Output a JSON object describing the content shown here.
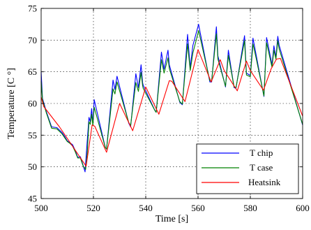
{
  "chart_data": {
    "type": "line",
    "title": "",
    "xlabel": "Time [s]",
    "ylabel": "Temperature [C °]",
    "xlim": [
      500,
      600
    ],
    "ylim": [
      45,
      75
    ],
    "xticks": [
      500,
      520,
      540,
      560,
      580,
      600
    ],
    "yticks": [
      45,
      50,
      55,
      60,
      65,
      70,
      75
    ],
    "grid": true,
    "legend_position": "bottom-right",
    "series": [
      {
        "name": "T chip",
        "color": "#0000ff",
        "x": [
          500,
          500.5,
          502,
          504,
          506,
          508,
          509,
          510,
          511,
          512,
          513,
          514,
          515,
          516,
          516.8,
          517.3,
          518.3,
          518.8,
          519.3,
          519.8,
          520.3,
          524.5,
          525,
          527.5,
          528.2,
          529,
          533.5,
          534.2,
          536.2,
          537.2,
          538.2,
          538.8,
          539,
          543.5,
          544,
          546,
          547,
          548.5,
          549,
          553,
          554,
          556,
          557,
          558,
          559.5,
          560.2,
          564.5,
          565.2,
          567,
          567.6,
          570.5,
          571.6,
          573.8,
          574.5,
          577.8,
          578.5,
          580,
          581,
          582.3,
          585.2,
          586.2,
          588.3,
          589,
          589.8,
          590.5,
          591,
          600
        ],
        "y": [
          65,
          60.8,
          58.7,
          56.3,
          56.2,
          55.4,
          54.8,
          54.1,
          53.8,
          53.5,
          52.6,
          51.5,
          51.6,
          50.3,
          49.2,
          52.3,
          57.8,
          57.1,
          59.2,
          56.8,
          60.6,
          53.1,
          52.8,
          63.7,
          62.2,
          64.3,
          56.9,
          56.3,
          64.7,
          62.5,
          66.1,
          63.3,
          62.9,
          58.9,
          58.6,
          68.1,
          65.4,
          68.4,
          66.1,
          60.2,
          59.8,
          70.9,
          65.6,
          69.1,
          71.4,
          72.5,
          63.4,
          63.4,
          72.1,
          67.5,
          62.6,
          68.4,
          62.5,
          62.4,
          70.7,
          64.8,
          64.4,
          70.3,
          67.5,
          61.1,
          70.4,
          66.1,
          69.1,
          67.3,
          70.6,
          69.2,
          56.6
        ]
      },
      {
        "name": "T case",
        "color": "#008000",
        "x": [
          500,
          500.5,
          502,
          504,
          506,
          508,
          509,
          510,
          511,
          512,
          513,
          514,
          515,
          516,
          517,
          517.6,
          518.3,
          518.8,
          519.3,
          519.8,
          520.3,
          524.5,
          525,
          527.5,
          528.2,
          529,
          533.5,
          534.2,
          536.2,
          537.2,
          538.2,
          538.8,
          539,
          543.5,
          544,
          546,
          547,
          548.5,
          549,
          553,
          554,
          556,
          557,
          558,
          559.5,
          560.2,
          564.5,
          565.2,
          567,
          567.6,
          570.5,
          571.6,
          573.8,
          574.5,
          577.8,
          578.5,
          580,
          581,
          582.3,
          585.2,
          586.2,
          588.3,
          589,
          589.8,
          590.5,
          591,
          600
        ],
        "y": [
          63.5,
          60.6,
          58.5,
          56.1,
          56,
          55.2,
          54.6,
          54,
          53.7,
          53.3,
          52.4,
          51.4,
          51.4,
          50.2,
          49.6,
          52,
          57.1,
          56.7,
          58.3,
          56.5,
          59.4,
          53.1,
          52.8,
          62.3,
          61.5,
          63.4,
          57,
          56.5,
          63.3,
          61.9,
          64.9,
          62.8,
          62.4,
          58.9,
          58.6,
          66.9,
          64.8,
          67.2,
          65.5,
          60.3,
          59.9,
          69.4,
          65.2,
          67.9,
          70.3,
          71.5,
          63.6,
          63.5,
          71,
          67,
          62.7,
          67.6,
          62.6,
          62.5,
          69.9,
          64.5,
          64.2,
          69.4,
          67,
          61.2,
          69.6,
          65.7,
          68.4,
          67,
          69.9,
          68.6,
          56.7
        ]
      },
      {
        "name": "Heatsink",
        "color": "#ff0000",
        "x": [
          500,
          501,
          507,
          517.2,
          519.5,
          520.5,
          525,
          530,
          535,
          540,
          545,
          549,
          550,
          555,
          560,
          565,
          568.5,
          570,
          575,
          578.5,
          580,
          585,
          588,
          590,
          591.5,
          600
        ],
        "y": [
          61,
          59.5,
          56.3,
          50.1,
          56.6,
          56.4,
          52.3,
          60,
          55.7,
          62.6,
          58.3,
          63.6,
          63.5,
          60.3,
          68.5,
          63.4,
          66.9,
          65.2,
          62,
          66.7,
          65.2,
          62.1,
          65.5,
          67,
          67.1,
          58
        ]
      }
    ]
  }
}
